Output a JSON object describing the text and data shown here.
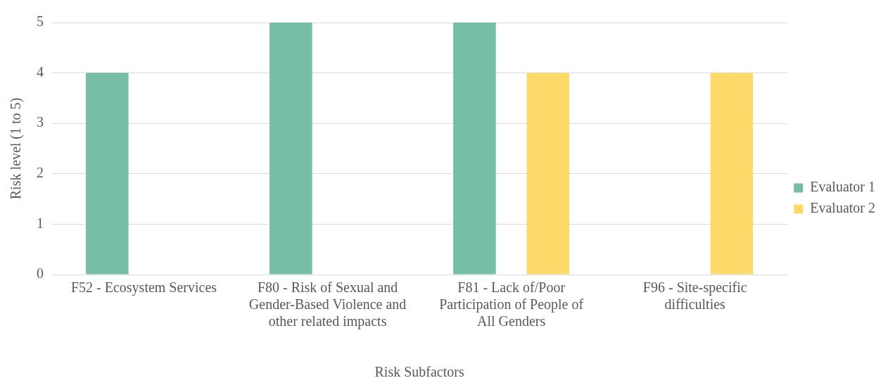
{
  "chart_data": {
    "type": "bar",
    "xlabel": "Risk Subfactors",
    "ylabel": "Risk level (1 to 5)",
    "categories": [
      "F52 - Ecosystem Services",
      "F80 - Risk of Sexual and Gender-Based Violence and other related impacts",
      "F81 - Lack of/Poor Participation of People of All Genders",
      "F96 - Site-specific difficulties"
    ],
    "series": [
      {
        "name": "Evaluator 1",
        "color": "#76bea6",
        "values": [
          4,
          5,
          5,
          null
        ]
      },
      {
        "name": "Evaluator 2",
        "color": "#fdd969",
        "values": [
          null,
          null,
          4,
          4
        ]
      }
    ],
    "ylim": [
      0,
      5
    ],
    "yticks": [
      0,
      1,
      2,
      3,
      4,
      5
    ],
    "grid": "y",
    "legend": "right"
  }
}
